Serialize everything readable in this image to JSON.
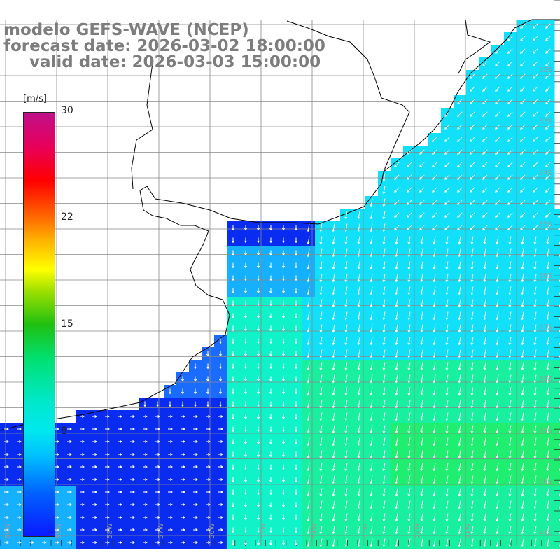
{
  "title": {
    "model": "modelo GEFS-WAVE (NCEP)",
    "forecast": "forecast date: 2026-03-02 18:00:00",
    "valid": "valid date: 2026-03-03 15:00:00"
  },
  "colorbar": {
    "unit": "[m/s]",
    "ticks": [
      "30",
      "22",
      "15",
      "8"
    ],
    "colors": [
      "#0a1aff",
      "#00e8ee",
      "#00e070",
      "#ffff00",
      "#ff0000",
      "#c0108a"
    ]
  },
  "map": {
    "lat_labels": [
      "32S",
      "33S",
      "34S",
      "35S",
      "36S",
      "37S",
      "38S",
      "39S",
      "40S",
      "41S"
    ],
    "lon_labels": [
      "60W",
      "59W",
      "58W",
      "57W",
      "56W",
      "55W",
      "54W",
      "53W",
      "52W",
      "51W"
    ],
    "land_color": "#ffffff",
    "coast_color": "#000000",
    "grid_color": "#888888",
    "vector_color": "#ffffff",
    "ocean_palette": [
      "#0a2cf0",
      "#1a6cff",
      "#15b0ff",
      "#12e0f8",
      "#10f2c8",
      "#18f0a0",
      "#20ee70"
    ]
  }
}
